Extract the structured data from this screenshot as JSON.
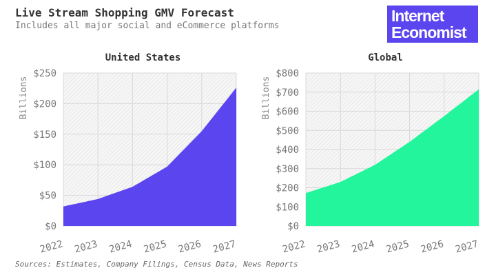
{
  "header": {
    "title": "Live Stream Shopping GMV Forecast",
    "subtitle": "Includes all major social and eCommerce platforms",
    "logo": "Internet Economist"
  },
  "footer": {
    "source": "Sources: Estimates, Company Filings, Census Data, News Reports"
  },
  "chart_data": [
    {
      "type": "area",
      "title": "United States",
      "ylabel": "Billions",
      "categories": [
        "2022",
        "2023",
        "2024",
        "2025",
        "2026",
        "2027"
      ],
      "values": [
        32,
        44,
        64,
        97,
        155,
        226
      ],
      "ylim": [
        0,
        250
      ],
      "yticks": [
        "$0",
        "$50",
        "$100",
        "$150",
        "$200",
        "$250"
      ],
      "ytick_values": [
        0,
        50,
        100,
        150,
        200,
        250
      ],
      "color": "#5b45ef",
      "grid": true
    },
    {
      "type": "area",
      "title": "Global",
      "ylabel": "Billions",
      "categories": [
        "2022",
        "2023",
        "2024",
        "2025",
        "2026",
        "2027"
      ],
      "values": [
        172,
        230,
        320,
        440,
        575,
        715
      ],
      "ylim": [
        0,
        800
      ],
      "yticks": [
        "$0",
        "$100",
        "$200",
        "$300",
        "$400",
        "$500",
        "$600",
        "$700",
        "$800"
      ],
      "ytick_values": [
        0,
        100,
        200,
        300,
        400,
        500,
        600,
        700,
        800
      ],
      "color": "#22f59c",
      "grid": true
    }
  ]
}
